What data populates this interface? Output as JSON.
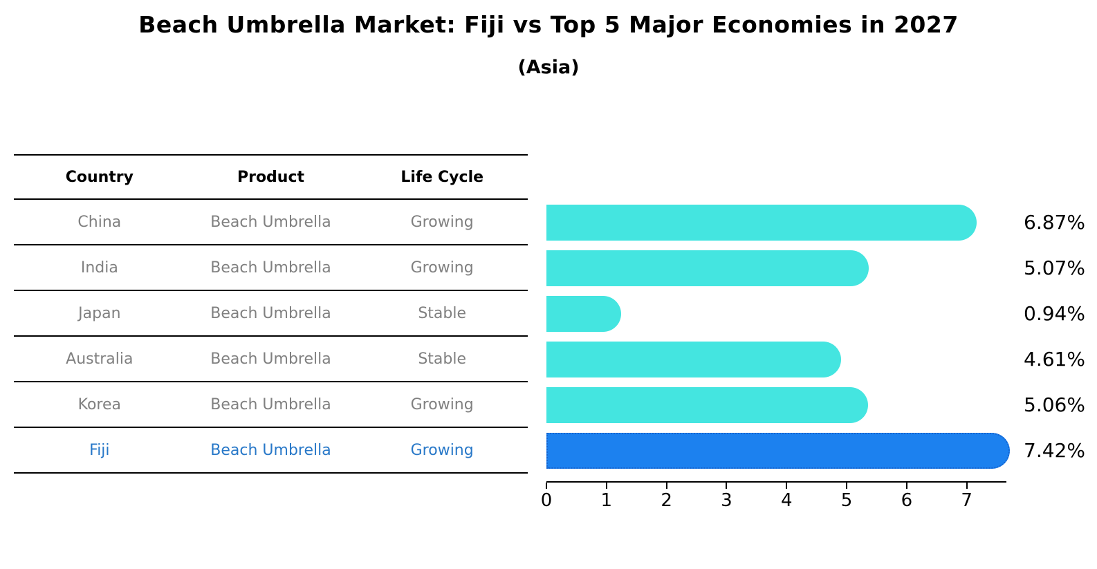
{
  "title": "Beach Umbrella Market: Fiji vs Top 5 Major Economies in 2027",
  "subtitle": "(Asia)",
  "table": {
    "headers": [
      "Country",
      "Product",
      "Life Cycle"
    ],
    "rows": [
      {
        "country": "China",
        "product": "Beach Umbrella",
        "life_cycle": "Growing",
        "highlight": false
      },
      {
        "country": "India",
        "product": "Beach Umbrella",
        "life_cycle": "Growing",
        "highlight": false
      },
      {
        "country": "Japan",
        "product": "Beach Umbrella",
        "life_cycle": "Stable",
        "highlight": false
      },
      {
        "country": "Australia",
        "product": "Beach Umbrella",
        "life_cycle": "Stable",
        "highlight": false
      },
      {
        "country": "Korea",
        "product": "Beach Umbrella",
        "life_cycle": "Growing",
        "highlight": false
      },
      {
        "country": "Fiji",
        "product": "Beach Umbrella",
        "life_cycle": "Growing",
        "highlight": true
      }
    ]
  },
  "chart_data": {
    "type": "bar",
    "orientation": "horizontal",
    "title": "Beach Umbrella Market: Fiji vs Top 5 Major Economies in 2027",
    "subtitle": "(Asia)",
    "categories": [
      "China",
      "India",
      "Japan",
      "Australia",
      "Korea",
      "Fiji"
    ],
    "values": [
      6.87,
      5.07,
      0.94,
      4.61,
      5.06,
      7.42
    ],
    "value_labels": [
      "6.87%",
      "5.07%",
      "0.94%",
      "4.61%",
      "5.06%",
      "7.42%"
    ],
    "unit": "%",
    "x_ticks": [
      "0",
      "1",
      "2",
      "3",
      "4",
      "5",
      "6",
      "7"
    ],
    "xlim": [
      0,
      7.66
    ],
    "grid": false,
    "legend": false,
    "highlight_index": 5,
    "colors": {
      "bar": "#44E5E0",
      "highlight_bar": "#1C81EF",
      "highlight_border": "#1463CF",
      "highlight_text": "#2878C8",
      "table_text": "#808080",
      "text": "#000000"
    }
  }
}
